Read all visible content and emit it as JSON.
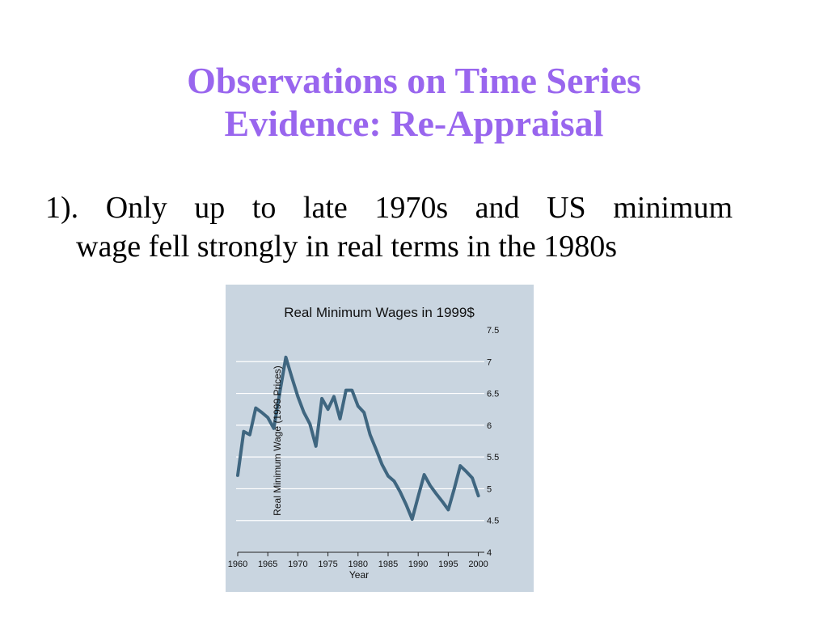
{
  "slide": {
    "title_line1": "Observations on Time Series",
    "title_line2": "Evidence: Re-Appraisal",
    "bullet_line1": "1). Only up to late 1970s and US minimum",
    "bullet_line2": "wage fell strongly in real terms in the 1980s"
  },
  "colors": {
    "title": "#9966ee",
    "panel_bg": "#c9d5e0",
    "series_line": "#3f6680",
    "grid": "#ffffff"
  },
  "chart_data": {
    "type": "line",
    "title": "Real Minimum Wages in 1999$",
    "xlabel": "Year",
    "ylabel": "Real Minimum Wage (1999 Prices)",
    "xlim": [
      1960,
      2001
    ],
    "ylim": [
      4,
      7.5
    ],
    "xticks": [
      1960,
      1965,
      1970,
      1975,
      1980,
      1985,
      1990,
      1995,
      2000
    ],
    "yticks": [
      4,
      4.5,
      5,
      5.5,
      6,
      6.5,
      7,
      7.5
    ],
    "ytick_labels": [
      "4",
      "4.5",
      "5",
      "5.5",
      "6",
      "6.5",
      "7",
      "7.5"
    ],
    "y_axis_side": "right",
    "grid": true,
    "series": [
      {
        "x": [
          1960,
          1961,
          1962,
          1963,
          1964,
          1965,
          1966,
          1967,
          1968,
          1969,
          1970,
          1971,
          1972,
          1973,
          1974,
          1975,
          1976,
          1977,
          1978,
          1979,
          1980,
          1981,
          1982,
          1983,
          1984,
          1985,
          1986,
          1987,
          1988,
          1989,
          1990,
          1991,
          1992,
          1993,
          1994,
          1995,
          1996,
          1997,
          1998,
          1999,
          2000
        ],
        "y": [
          5.21,
          5.9,
          5.85,
          6.27,
          6.2,
          6.12,
          5.95,
          6.52,
          7.07,
          6.75,
          6.45,
          6.2,
          6.02,
          5.67,
          6.42,
          6.25,
          6.45,
          6.1,
          6.55,
          6.55,
          6.3,
          6.2,
          5.85,
          5.62,
          5.38,
          5.2,
          5.12,
          4.95,
          4.75,
          4.52,
          4.88,
          5.22,
          5.05,
          4.92,
          4.8,
          4.67,
          5.0,
          5.36,
          5.27,
          5.17,
          4.89
        ]
      }
    ]
  }
}
